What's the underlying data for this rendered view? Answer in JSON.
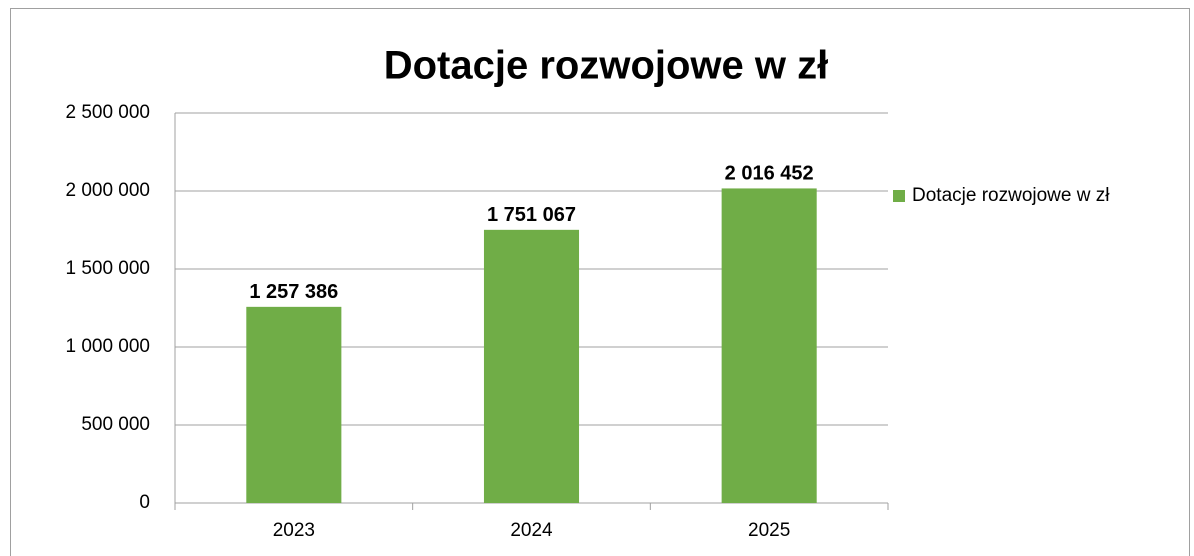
{
  "chart_data": {
    "type": "bar",
    "title": "Dotacje rozwojowe w zł",
    "categories": [
      "2023",
      "2024",
      "2025"
    ],
    "series": [
      {
        "name": "Dotacje rozwojowe w zł",
        "color": "#70ad47",
        "values": [
          1257386,
          1751067,
          2016452
        ],
        "value_labels": [
          "1 257 386",
          "1 751 067",
          "2 016 452"
        ]
      }
    ],
    "ylim": [
      0,
      2500000
    ],
    "yticks": [
      0,
      {
        "value": 500000,
        "label": "500 000"
      },
      {
        "value": 1000000,
        "label": "1 000 000"
      },
      {
        "value": 1500000,
        "label": "1 500 000"
      },
      {
        "value": 2000000,
        "label": "2 000 000"
      },
      {
        "value": 2500000,
        "label": "2 500 000"
      }
    ],
    "grid": true,
    "legend": "right"
  }
}
